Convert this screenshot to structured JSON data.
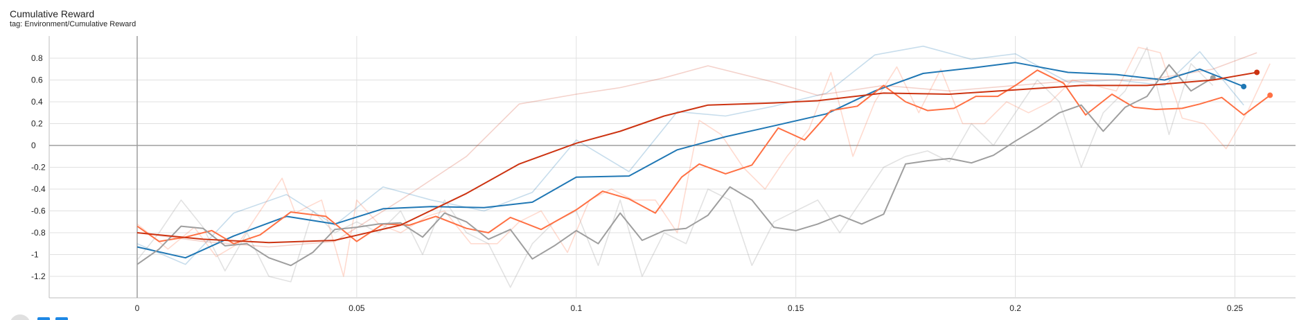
{
  "header": {
    "title": "Cumulative Reward",
    "subtitle": "tag: Environment/Cumulative Reward"
  },
  "chart_data": {
    "type": "line",
    "title": "Cumulative Reward",
    "subtitle": "tag: Environment/Cumulative Reward",
    "xlim": [
      -0.02,
      0.26
    ],
    "ylim": [
      -1.3,
      1.0
    ],
    "x_ticks": [
      "0",
      "0.05",
      "0.1",
      "0.15",
      "0.2",
      "0.25"
    ],
    "y_ticks": [
      "0.8",
      "0.6",
      "0.4",
      "0.2",
      "0",
      "-0.2",
      "-0.4",
      "-0.6",
      "-0.8",
      "-1",
      "-1.2"
    ],
    "grid": true,
    "series": [
      {
        "color": "#1f77b4",
        "raw_opacity": 0.25,
        "raw": {
          "x": [
            0,
            0.011,
            0.022,
            0.034,
            0.045,
            0.056,
            0.067,
            0.079,
            0.09,
            0.1,
            0.112,
            0.123,
            0.134,
            0.145,
            0.157,
            0.168,
            0.179,
            0.19,
            0.2,
            0.212,
            0.223,
            0.234,
            0.242,
            0.252
          ],
          "y": [
            -0.9,
            -1.09,
            -0.62,
            -0.45,
            -0.73,
            -0.38,
            -0.5,
            -0.6,
            -0.43,
            0.05,
            -0.24,
            0.31,
            0.27,
            0.36,
            0.48,
            0.83,
            0.91,
            0.79,
            0.84,
            0.58,
            0.6,
            0.55,
            0.86,
            0.37
          ]
        },
        "smoothed": {
          "x": [
            0,
            0.011,
            0.022,
            0.034,
            0.045,
            0.056,
            0.067,
            0.079,
            0.09,
            0.1,
            0.112,
            0.123,
            0.134,
            0.145,
            0.157,
            0.168,
            0.179,
            0.19,
            0.2,
            0.212,
            0.223,
            0.234,
            0.242,
            0.252
          ],
          "y": [
            -0.93,
            -1.03,
            -0.83,
            -0.65,
            -0.72,
            -0.58,
            -0.56,
            -0.57,
            -0.52,
            -0.29,
            -0.28,
            -0.04,
            0.08,
            0.18,
            0.29,
            0.5,
            0.66,
            0.71,
            0.76,
            0.67,
            0.65,
            0.6,
            0.7,
            0.54
          ]
        }
      },
      {
        "color": "#ff7043",
        "raw_opacity": 0.25,
        "raw": {
          "x": [
            0,
            0.007,
            0.013,
            0.018,
            0.023,
            0.028,
            0.033,
            0.036,
            0.042,
            0.047,
            0.05,
            0.055,
            0.06,
            0.066,
            0.07,
            0.076,
            0.082,
            0.087,
            0.092,
            0.098,
            0.103,
            0.108,
            0.113,
            0.118,
            0.123,
            0.128,
            0.133,
            0.138,
            0.143,
            0.148,
            0.153,
            0.158,
            0.163,
            0.168,
            0.173,
            0.178,
            0.183,
            0.188,
            0.193,
            0.198,
            0.203,
            0.208,
            0.213,
            0.218,
            0.223,
            0.228,
            0.233,
            0.238,
            0.243,
            0.248,
            0.253,
            0.258
          ],
          "y": [
            -0.72,
            -0.95,
            -0.75,
            -1.02,
            -0.9,
            -0.6,
            -0.3,
            -0.62,
            -0.5,
            -1.2,
            -0.5,
            -0.72,
            -0.8,
            -0.65,
            -0.6,
            -0.9,
            -0.9,
            -0.7,
            -0.6,
            -0.98,
            -0.5,
            -0.4,
            -0.5,
            -0.5,
            -0.8,
            0.23,
            0.1,
            -0.2,
            -0.4,
            -0.1,
            0.15,
            0.67,
            -0.1,
            0.4,
            0.72,
            0.3,
            0.7,
            0.2,
            0.2,
            0.4,
            0.3,
            0.4,
            0.6,
            0.55,
            0.5,
            0.9,
            0.85,
            0.25,
            0.2,
            -0.03,
            0.32,
            0.75
          ]
        },
        "smoothed": {
          "x": [
            0,
            0.005,
            0.011,
            0.017,
            0.022,
            0.028,
            0.035,
            0.043,
            0.05,
            0.056,
            0.062,
            0.068,
            0.075,
            0.08,
            0.085,
            0.092,
            0.1,
            0.106,
            0.112,
            0.118,
            0.124,
            0.128,
            0.134,
            0.14,
            0.146,
            0.152,
            0.158,
            0.164,
            0.17,
            0.175,
            0.18,
            0.186,
            0.191,
            0.196,
            0.2,
            0.205,
            0.211,
            0.216,
            0.222,
            0.227,
            0.232,
            0.238,
            0.242,
            0.247,
            0.252,
            0.258
          ],
          "y": [
            -0.74,
            -0.88,
            -0.84,
            -0.78,
            -0.9,
            -0.82,
            -0.61,
            -0.65,
            -0.88,
            -0.72,
            -0.73,
            -0.65,
            -0.76,
            -0.8,
            -0.66,
            -0.77,
            -0.59,
            -0.42,
            -0.49,
            -0.62,
            -0.29,
            -0.17,
            -0.26,
            -0.18,
            0.16,
            0.05,
            0.32,
            0.36,
            0.55,
            0.4,
            0.32,
            0.34,
            0.45,
            0.45,
            0.55,
            0.69,
            0.57,
            0.28,
            0.47,
            0.35,
            0.33,
            0.34,
            0.38,
            0.44,
            0.28,
            0.46
          ]
        }
      },
      {
        "color": "#9e9e9e",
        "raw_opacity": 0.3,
        "raw": {
          "x": [
            0,
            0.005,
            0.01,
            0.015,
            0.02,
            0.025,
            0.03,
            0.035,
            0.04,
            0.045,
            0.05,
            0.055,
            0.06,
            0.065,
            0.07,
            0.075,
            0.08,
            0.085,
            0.09,
            0.095,
            0.1,
            0.105,
            0.11,
            0.115,
            0.12,
            0.125,
            0.13,
            0.135,
            0.14,
            0.145,
            0.15,
            0.155,
            0.16,
            0.165,
            0.17,
            0.175,
            0.18,
            0.185,
            0.19,
            0.195,
            0.2,
            0.205,
            0.21,
            0.215,
            0.22,
            0.225,
            0.23,
            0.235,
            0.24,
            0.245
          ],
          "y": [
            -1.05,
            -0.8,
            -0.5,
            -0.75,
            -1.15,
            -0.8,
            -1.2,
            -1.25,
            -0.6,
            -0.8,
            -0.7,
            -0.8,
            -0.6,
            -1.0,
            -0.5,
            -0.8,
            -0.9,
            -1.3,
            -0.9,
            -0.7,
            -0.6,
            -1.1,
            -0.5,
            -1.2,
            -0.8,
            -0.9,
            -0.4,
            -0.5,
            -1.1,
            -0.7,
            -0.6,
            -0.5,
            -0.8,
            -0.5,
            -0.2,
            -0.1,
            -0.05,
            -0.15,
            0.2,
            0.0,
            0.3,
            0.6,
            0.4,
            -0.2,
            0.3,
            0.5,
            0.9,
            0.1,
            0.75,
            0.55
          ]
        },
        "smoothed": {
          "x": [
            0,
            0.005,
            0.01,
            0.015,
            0.02,
            0.025,
            0.03,
            0.035,
            0.04,
            0.045,
            0.05,
            0.055,
            0.06,
            0.065,
            0.07,
            0.075,
            0.08,
            0.085,
            0.09,
            0.095,
            0.1,
            0.105,
            0.11,
            0.115,
            0.12,
            0.125,
            0.13,
            0.135,
            0.14,
            0.145,
            0.15,
            0.155,
            0.16,
            0.165,
            0.17,
            0.175,
            0.18,
            0.185,
            0.19,
            0.195,
            0.2,
            0.205,
            0.21,
            0.215,
            0.22,
            0.225,
            0.23,
            0.235,
            0.24,
            0.245
          ],
          "y": [
            -1.09,
            -0.95,
            -0.74,
            -0.76,
            -0.92,
            -0.9,
            -1.03,
            -1.1,
            -0.98,
            -0.77,
            -0.75,
            -0.72,
            -0.71,
            -0.84,
            -0.62,
            -0.7,
            -0.86,
            -0.77,
            -1.04,
            -0.92,
            -0.78,
            -0.9,
            -0.62,
            -0.87,
            -0.78,
            -0.76,
            -0.64,
            -0.38,
            -0.5,
            -0.75,
            -0.78,
            -0.72,
            -0.64,
            -0.72,
            -0.63,
            -0.17,
            -0.14,
            -0.12,
            -0.16,
            -0.09,
            0.04,
            0.16,
            0.3,
            0.37,
            0.13,
            0.35,
            0.45,
            0.74,
            0.5,
            0.62
          ]
        }
      },
      {
        "color": "#cc3311",
        "raw_opacity": 0.22,
        "raw": {
          "x": [
            0,
            0.015,
            0.03,
            0.045,
            0.06,
            0.075,
            0.087,
            0.1,
            0.11,
            0.12,
            0.13,
            0.145,
            0.155,
            0.17,
            0.185,
            0.2,
            0.215,
            0.23,
            0.245,
            0.255
          ],
          "y": [
            -0.8,
            -0.88,
            -0.93,
            -0.88,
            -0.5,
            -0.1,
            0.38,
            0.47,
            0.53,
            0.62,
            0.73,
            0.58,
            0.46,
            0.55,
            0.5,
            0.55,
            0.6,
            0.6,
            0.7,
            0.85
          ]
        },
        "smoothed": {
          "x": [
            0,
            0.015,
            0.03,
            0.045,
            0.06,
            0.075,
            0.087,
            0.1,
            0.11,
            0.12,
            0.13,
            0.145,
            0.155,
            0.17,
            0.185,
            0.2,
            0.215,
            0.23,
            0.245,
            0.255
          ],
          "y": [
            -0.8,
            -0.86,
            -0.89,
            -0.87,
            -0.73,
            -0.44,
            -0.17,
            0.02,
            0.13,
            0.27,
            0.37,
            0.39,
            0.41,
            0.48,
            0.47,
            0.51,
            0.55,
            0.55,
            0.6,
            0.67
          ]
        }
      }
    ]
  }
}
